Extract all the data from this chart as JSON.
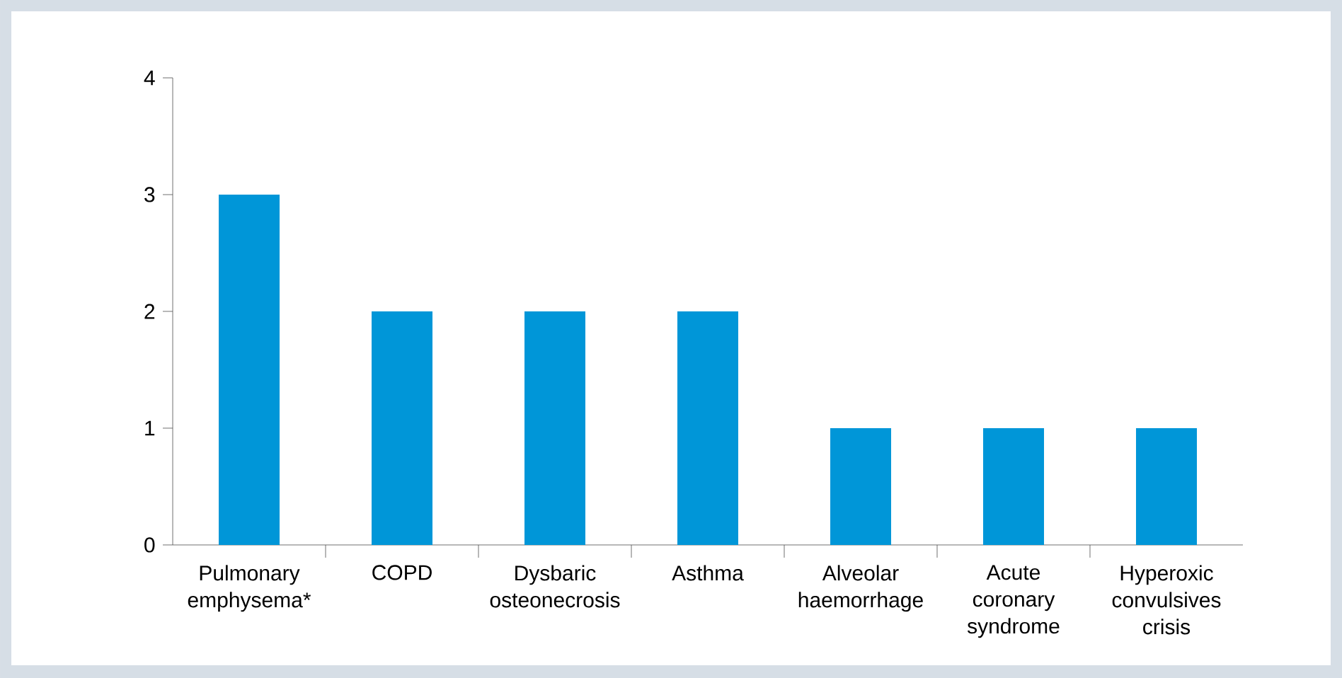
{
  "chart_data": {
    "type": "bar",
    "categories": [
      "Pulmonary emphysema*",
      "COPD",
      "Dysbaric osteonecrosis",
      "Asthma",
      "Alveolar haemorrhage",
      "Acute coronary syndrome",
      "Hyperoxic convulsives crisis"
    ],
    "values": [
      3,
      2,
      2,
      2,
      1,
      1,
      1
    ],
    "color": "#0096d8",
    "ylim": [
      0,
      4
    ],
    "yticks": [
      0,
      1,
      2,
      3,
      4
    ],
    "grid": false
  }
}
